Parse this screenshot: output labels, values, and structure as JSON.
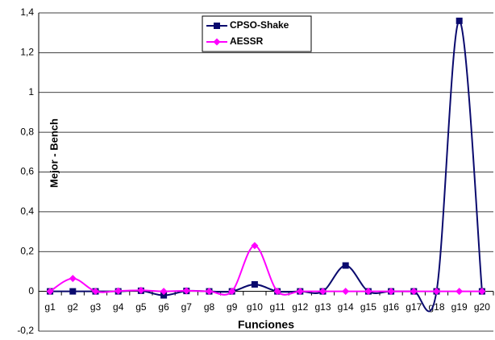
{
  "chart_data": {
    "type": "line",
    "y_label": "Mejor - Bench",
    "x_label": "Funciones",
    "categories": [
      "g1",
      "g2",
      "g3",
      "g4",
      "g5",
      "g6",
      "g7",
      "g8",
      "g9",
      "g10",
      "g11",
      "g12",
      "g13",
      "g14",
      "g15",
      "g16",
      "g17",
      "g18",
      "g19",
      "g20"
    ],
    "series": [
      {
        "name": "CPSO-Shake",
        "color": "#0a0a6e",
        "marker": "square",
        "values": [
          0,
          0,
          0,
          0,
          0.003,
          -0.02,
          0.002,
          0,
          0,
          0.035,
          0,
          0,
          0,
          0.13,
          0,
          0,
          0,
          0,
          1.36,
          0
        ]
      },
      {
        "name": "AESSR",
        "color": "#ff00ff",
        "marker": "diamond",
        "values": [
          0,
          0.065,
          0,
          0.002,
          0.005,
          0,
          0.003,
          0,
          0,
          0.23,
          0,
          0,
          0,
          0,
          0,
          0,
          0,
          0,
          0,
          0
        ]
      }
    ],
    "ylim": [
      -0.2,
      1.4
    ],
    "yticks": [
      {
        "value": -0.2,
        "label": "-0,2"
      },
      0,
      {
        "value": 0.2,
        "label": "0,2"
      },
      {
        "value": 0.4,
        "label": "0,4"
      },
      {
        "value": 0.6,
        "label": "0,6"
      },
      {
        "value": 0.8,
        "label": "0,8"
      },
      1,
      {
        "value": 1.2,
        "label": "1,2"
      },
      {
        "value": 1.4,
        "label": "1,4"
      }
    ],
    "grid": true,
    "smooth": true
  }
}
